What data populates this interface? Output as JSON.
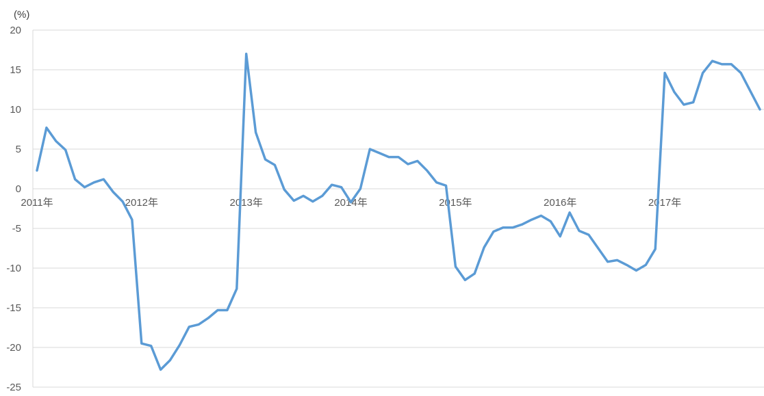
{
  "chart_data": {
    "type": "line",
    "title": "",
    "xlabel": "",
    "ylabel": "(%)",
    "ylim": [
      -25,
      20
    ],
    "yticks": [
      20,
      15,
      10,
      5,
      0,
      -5,
      -10,
      -15,
      -20,
      -25
    ],
    "grid": true,
    "legend": "none",
    "x_labels": [
      "2011年",
      "2012年",
      "2013年",
      "2014年",
      "2015年",
      "2016年",
      "2017年"
    ],
    "x_label_index": [
      0,
      11,
      22,
      33,
      44,
      55,
      66
    ],
    "series": [
      {
        "color": "#5b9bd5",
        "values": [
          2.3,
          7.7,
          6.0,
          4.9,
          1.2,
          0.2,
          0.8,
          1.2,
          -0.4,
          -1.6,
          -3.9,
          -19.5,
          -19.8,
          -22.8,
          -21.6,
          -19.7,
          -17.4,
          -17.1,
          -16.3,
          -15.3,
          -15.3,
          -12.6,
          17.0,
          7.1,
          3.7,
          3.0,
          -0.1,
          -1.5,
          -0.9,
          -1.6,
          -0.9,
          0.5,
          0.2,
          -1.7,
          0.0,
          5.0,
          4.5,
          4.0,
          4.0,
          3.1,
          3.5,
          2.3,
          0.8,
          0.4,
          -9.8,
          -11.5,
          -10.7,
          -7.4,
          -5.4,
          -4.9,
          -4.9,
          -4.5,
          -3.9,
          -3.4,
          -4.1,
          -6.0,
          -3.0,
          -5.3,
          -5.8,
          -7.5,
          -9.2,
          -9.0,
          -9.6,
          -10.3,
          -9.6,
          -7.6,
          14.6,
          12.2,
          10.6,
          10.9,
          14.6,
          16.1,
          15.7,
          15.7,
          14.6,
          12.3,
          10.0
        ]
      }
    ]
  }
}
